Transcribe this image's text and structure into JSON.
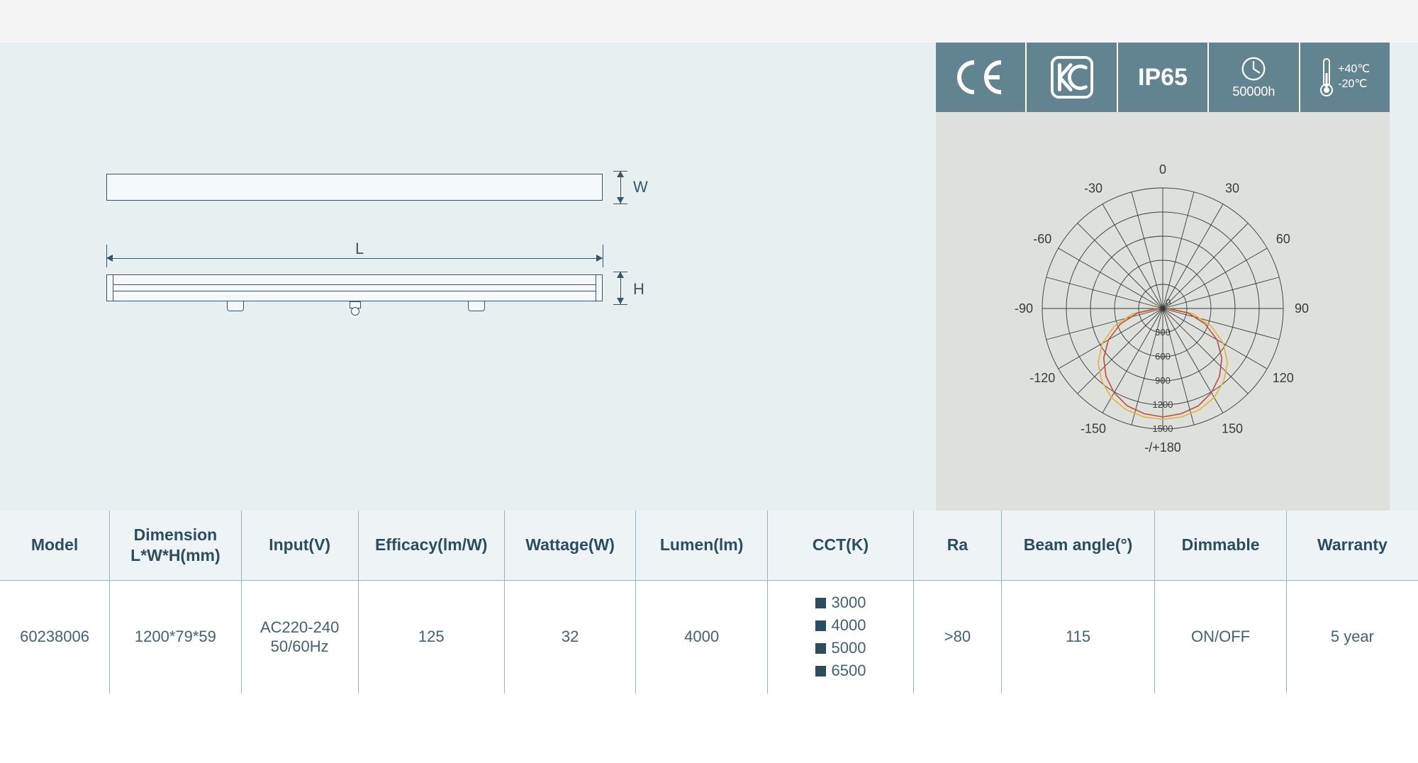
{
  "colors": {
    "page_bg": "#ffffff",
    "top_strip_bg": "#f4f4f4",
    "spec_bg": "#e8eff0",
    "right_panel_bg": "#dee0db",
    "badge_bg": "#628490",
    "badge_fg": "#ffffff",
    "line": "#3a5666",
    "table_border": "#9fb1b9",
    "th_bg": "#eef4f5",
    "th_color": "#2b4d5e",
    "td_color": "#456070",
    "polar_curve1": "#e4b23a",
    "polar_curve2": "#c14d3a",
    "polar_grid": "#3a3a3a"
  },
  "diagram": {
    "labels": {
      "L": "L",
      "W": "W",
      "H": "H"
    }
  },
  "badges": {
    "ce": "CE",
    "kc": "KC",
    "ip": "IP65",
    "life": "50000h",
    "temp_high": "+40℃",
    "temp_low": "-20℃"
  },
  "polar": {
    "angle_labels": [
      "-/+180",
      "-150",
      "150",
      "-120",
      "120",
      "-90",
      "90",
      "-60",
      "60",
      "-30",
      "30",
      "0"
    ],
    "angle_positions_deg": [
      180,
      210,
      150,
      240,
      120,
      270,
      90,
      300,
      60,
      330,
      30,
      0
    ],
    "radial_values": [
      0,
      300,
      600,
      900,
      1200,
      1500
    ],
    "radial_max": 1500,
    "rings": 5,
    "spokes": 24,
    "label_fontsize": 18,
    "tick_fontsize": 13,
    "curves": [
      {
        "color": "#e4b23a",
        "points_deg_r": [
          [
            -90,
            80
          ],
          [
            -80,
            380
          ],
          [
            -70,
            640
          ],
          [
            -60,
            870
          ],
          [
            -50,
            1050
          ],
          [
            -40,
            1180
          ],
          [
            -30,
            1280
          ],
          [
            -20,
            1340
          ],
          [
            -10,
            1370
          ],
          [
            0,
            1380
          ],
          [
            10,
            1370
          ],
          [
            20,
            1340
          ],
          [
            30,
            1280
          ],
          [
            40,
            1180
          ],
          [
            50,
            1050
          ],
          [
            60,
            870
          ],
          [
            70,
            640
          ],
          [
            80,
            380
          ],
          [
            90,
            80
          ]
        ]
      },
      {
        "color": "#c14d3a",
        "points_deg_r": [
          [
            -90,
            60
          ],
          [
            -80,
            320
          ],
          [
            -70,
            560
          ],
          [
            -60,
            780
          ],
          [
            -50,
            960
          ],
          [
            -40,
            1100
          ],
          [
            -30,
            1210
          ],
          [
            -20,
            1290
          ],
          [
            -10,
            1330
          ],
          [
            0,
            1350
          ],
          [
            10,
            1330
          ],
          [
            20,
            1290
          ],
          [
            30,
            1210
          ],
          [
            40,
            1100
          ],
          [
            50,
            960
          ],
          [
            60,
            780
          ],
          [
            70,
            560
          ],
          [
            80,
            320
          ],
          [
            90,
            60
          ]
        ]
      }
    ]
  },
  "table": {
    "columns": [
      {
        "key": "model",
        "label": "Model",
        "width": "7.5%"
      },
      {
        "key": "dimension",
        "label": "Dimension\nL*W*H(mm)",
        "width": "9%"
      },
      {
        "key": "input",
        "label": "Input(V)",
        "width": "8%"
      },
      {
        "key": "efficacy",
        "label": "Efficacy(lm/W)",
        "width": "10%"
      },
      {
        "key": "wattage",
        "label": "Wattage(W)",
        "width": "9%"
      },
      {
        "key": "lumen",
        "label": "Lumen(lm)",
        "width": "9%"
      },
      {
        "key": "cct",
        "label": "CCT(K)",
        "width": "10%"
      },
      {
        "key": "ra",
        "label": "Ra",
        "width": "6%"
      },
      {
        "key": "beam",
        "label": "Beam angle(°)",
        "width": "10.5%"
      },
      {
        "key": "dimmable",
        "label": "Dimmable",
        "width": "9%"
      },
      {
        "key": "warranty",
        "label": "Warranty",
        "width": "9%"
      }
    ],
    "rows": [
      {
        "model": "60238006",
        "dimension": "1200*79*59",
        "input": "AC220-240\n50/60Hz",
        "efficacy": "125",
        "wattage": "32",
        "lumen": "4000",
        "cct_options": [
          "3000",
          "4000",
          "5000",
          "6500"
        ],
        "ra": ">80",
        "beam": "115",
        "dimmable": "ON/OFF",
        "warranty": "5 year"
      }
    ]
  }
}
